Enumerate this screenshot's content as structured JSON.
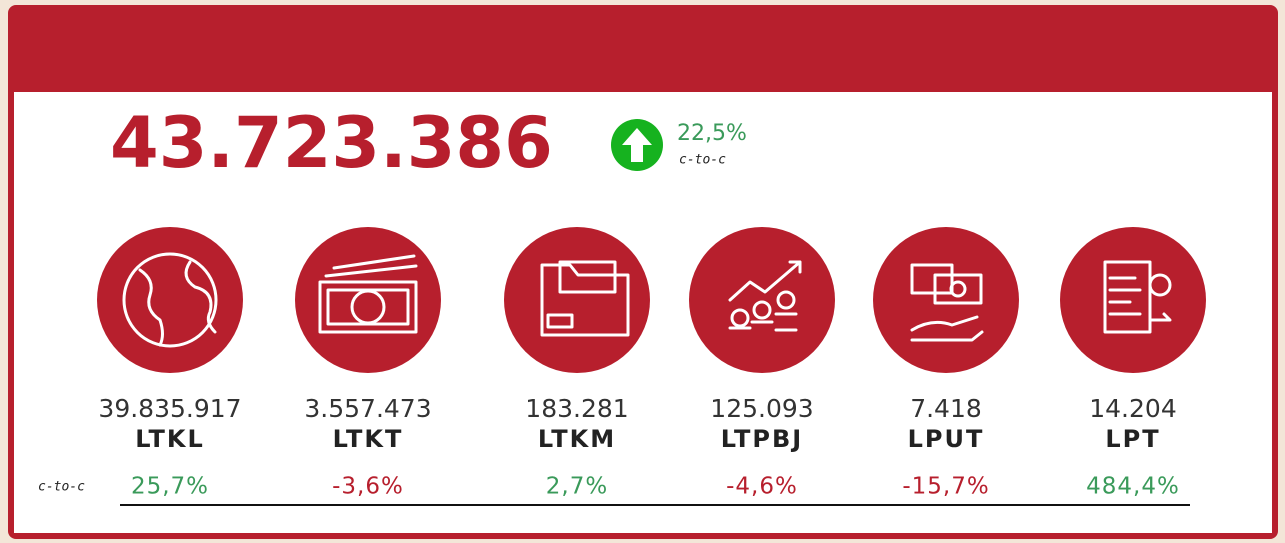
{
  "summary": {
    "total": "43.723.386",
    "change": "22,5%",
    "change_label": "c-to-c"
  },
  "row_label": "c-to-c",
  "items": [
    {
      "value": "39.835.917",
      "label": "LTKL",
      "change": "25,7%"
    },
    {
      "value": "3.557.473",
      "label": "LTKT",
      "change": "-3,6%"
    },
    {
      "value": "183.281",
      "label": "LTKM",
      "change": "2,7%"
    },
    {
      "value": "125.093",
      "label": "LTPBJ",
      "change": "-4,6%"
    },
    {
      "value": "7.418",
      "label": "LPUT",
      "change": "-15,7%"
    },
    {
      "value": "14.204",
      "label": "LPT",
      "change": "484,4%"
    }
  ]
}
